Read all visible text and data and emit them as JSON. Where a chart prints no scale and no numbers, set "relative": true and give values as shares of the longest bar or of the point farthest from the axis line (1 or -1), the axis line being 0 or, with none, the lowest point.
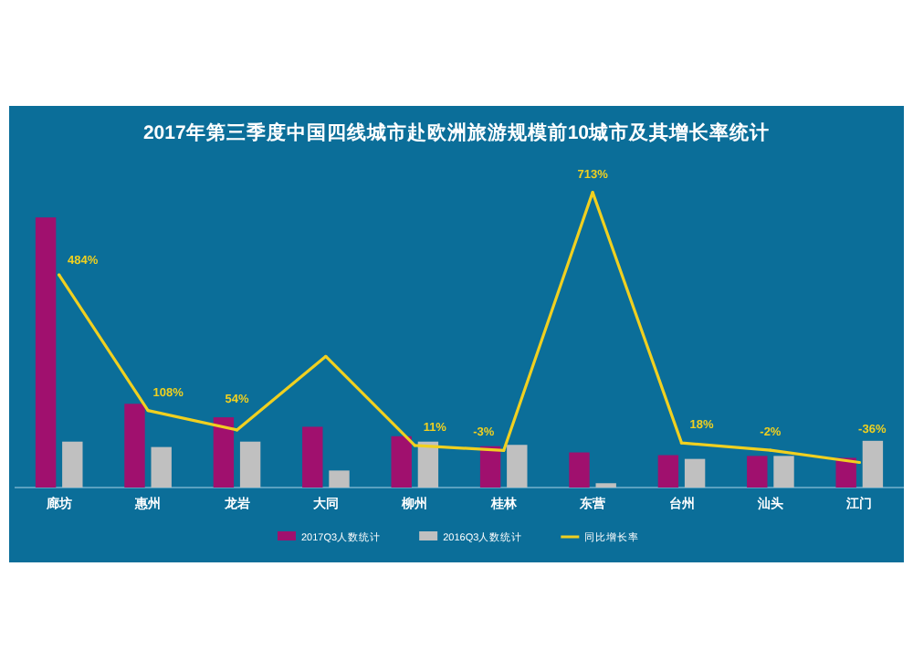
{
  "chart_data": [
    {
      "type": "bar",
      "title": "2017年第三季度中国四线城市赴欧洲旅游规模前10城市及其增长率统计",
      "relative": true,
      "legend": "bottom",
      "categories": [
        "廊坊",
        "惠州",
        "龙岩",
        "大同",
        "柳州",
        "桂林",
        "东营",
        "台州",
        "汕头",
        "江门"
      ],
      "series": [
        {
          "name": "2017Q3人数统计",
          "color": "#a0106e",
          "values": [
            1,
            0.31,
            0.26,
            0.225,
            0.19,
            0.153,
            0.13,
            0.12,
            0.117,
            0.11
          ]
        },
        {
          "name": "2016Q3人数统计",
          "color": "#c0c0c0",
          "values": [
            0.17,
            0.15,
            0.17,
            0.063,
            0.17,
            0.158,
            0.016,
            0.106,
            0.117,
            0.173
          ]
        }
      ]
    },
    {
      "type": "line",
      "legend": "bottom",
      "tick_labels": false,
      "categories": [
        null,
        null,
        null,
        null,
        null,
        null,
        null,
        null,
        null,
        null
      ],
      "series": [
        {
          "name": "同比增长率",
          "color": "#f0d020",
          "values": [
            484,
            108,
            54,
            258,
            11,
            -3,
            713,
            18,
            -2,
            -36
          ],
          "value_labels": [
            "484%",
            "108%",
            "54%",
            null,
            "11%",
            "-3%",
            "713%",
            "18%",
            "-2%",
            "-36%"
          ]
        }
      ]
    }
  ]
}
